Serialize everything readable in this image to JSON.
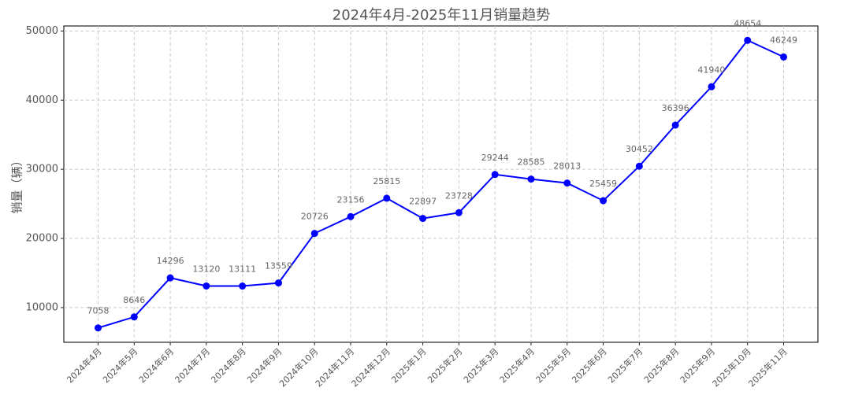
{
  "chart_data": {
    "type": "line",
    "title": "2024年4月-2025年11月销量趋势",
    "y_label": "销量（辆）",
    "categories": [
      "2024年4月",
      "2024年5月",
      "2024年6月",
      "2024年7月",
      "2024年8月",
      "2024年9月",
      "2024年10月",
      "2024年11月",
      "2024年12月",
      "2025年1月",
      "2025年2月",
      "2025年3月",
      "2025年4月",
      "2025年5月",
      "2025年6月",
      "2025年7月",
      "2025年8月",
      "2025年9月",
      "2025年10月",
      "2025年11月"
    ],
    "series": [
      {
        "color": "#0000ff",
        "values": [
          7058,
          8646,
          14296,
          13120,
          13111,
          13559,
          20726,
          23156,
          25815,
          22897,
          23728,
          29244,
          28585,
          28013,
          25459,
          30452,
          36396,
          41940,
          48654,
          46249
        ]
      }
    ],
    "ylim": [
      4978,
      50734
    ],
    "yticks": [
      10000,
      20000,
      30000,
      40000,
      50000
    ],
    "grid": true,
    "data_labels": true
  }
}
